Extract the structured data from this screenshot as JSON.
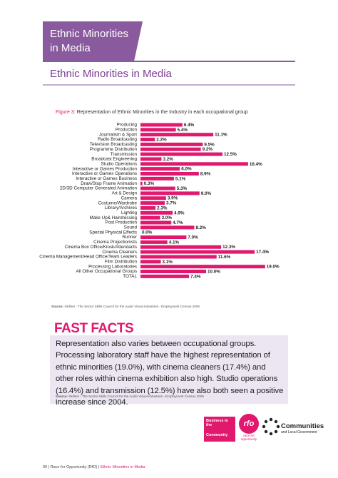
{
  "header": {
    "banner": [
      "Ethnic Minorities",
      "in Media"
    ],
    "title": "Ethnic Minorities in Media"
  },
  "chart_data": {
    "type": "bar",
    "orientation": "horizontal",
    "figure_label": "Figure 3:",
    "title": "Representation of Ethnic Minorities in the Industry in each occupational group",
    "categories": [
      "Producing",
      "Production",
      "Journalism & Sport",
      "Radio Broadcasting",
      "Television Broadcasting",
      "Programme Distribution",
      "Transmission",
      "Broadcast Engineering",
      "Studio Operations",
      "Interactive or Games Production",
      "Interactive or Games Operations",
      "Interactive or Games Business",
      "Draw/Stop Frame Animation",
      "2D/3D Computer Generated Animation",
      "Art & Design",
      "Camera",
      "Costume/Wardrobe",
      "Library/Archives",
      "Lighting",
      "Make Up& Hairdressing",
      "Post Production",
      "Sound",
      "Special Physical Effects",
      "Runner",
      "Cinema Projectionists",
      "Cinema Box Office/Kiosk/Attendants",
      "Cinema Cleaners",
      "Cinema Management/Head Office/Team Leaders",
      "Film Distribution",
      "Processing Laboratories",
      "All Other Occupational Groups",
      "TOTAL"
    ],
    "values": [
      6.4,
      5.4,
      11.1,
      2.2,
      9.5,
      9.2,
      12.5,
      3.2,
      16.4,
      6.0,
      8.9,
      5.1,
      0.3,
      5.3,
      9.0,
      3.9,
      3.7,
      2.3,
      4.9,
      3.0,
      4.7,
      8.2,
      0.0,
      7.0,
      4.1,
      12.3,
      17.4,
      11.6,
      3.1,
      19.0,
      10.0,
      7.4
    ],
    "value_labels": [
      "6.4%",
      "5.4%",
      "11.1%",
      "2.2%",
      "9.5%",
      "9.2%",
      "12.5%",
      "3.2%",
      "16.4%",
      "6.0%",
      "8.9%",
      "5.1%",
      "0.3%",
      "5.3%",
      "9.0%",
      "3.9%",
      "3.7%",
      "2.3%",
      "4.9%",
      "3.0%",
      "4.7%",
      "8.2%",
      "0.0%",
      "7.0%",
      "4.1%",
      "12.3%",
      "17.4%",
      "11.6%",
      "3.1%",
      "19.0%",
      "10.0%",
      "7.4%"
    ],
    "color": "#e0196f",
    "source_label": "Source:",
    "source": "Skillset - The Sector Skills Council for the Audio Visual Industries - Employment Census 2006"
  },
  "fast_facts": {
    "title": "FAST FACTS",
    "text": "Representation also varies between occupational groups. Processing laboratory staff have the highest representation of ethnic minorities (19.0%), with cinema cleaners (17.4%) and other roles within cinema exhibition also high. Studio operations (16.4%) and transmission (12.5%) have also both seen a positive increase since 2004.",
    "source_label": "Source:",
    "source": "Skillset - The Sector Skills Council for the Audio Visual Industries - Employment Census 2006"
  },
  "logos": {
    "bitc": [
      "Business in the",
      "Community"
    ],
    "rfo": [
      "rfo",
      "race for",
      "opportunity"
    ],
    "clg": [
      "Communities",
      "and Local Government"
    ]
  },
  "footer": {
    "page": "09",
    "report": "Race for Opportunity (RfO)",
    "section": "Ethnic Minorities in Media"
  }
}
